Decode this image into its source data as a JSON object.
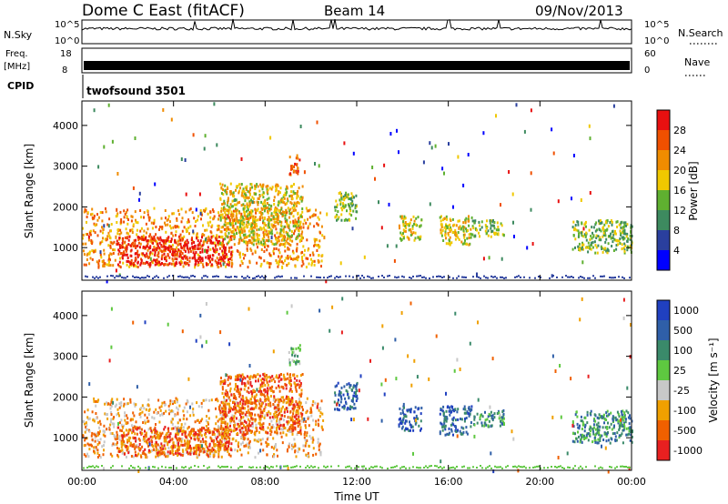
{
  "header": {
    "title": "Dome C East (fitACF)",
    "beam": "Beam 14",
    "date": "09/Nov/2013"
  },
  "top_panels": {
    "nsky_label": "N.Sky",
    "nsky_ticks": [
      "10^5",
      "10^0"
    ],
    "nsearch_label": "N.Search",
    "nsearch_ticks": [
      "10^5",
      "10^0"
    ],
    "freq_label": "Freq.",
    "freq_unit": "[MHz]",
    "freq_ticks": [
      "18",
      "8"
    ],
    "nave_label": "Nave",
    "nave_ticks": [
      "60",
      "0"
    ],
    "cpid_label": "CPID",
    "cpid_value": "twofsound 3501"
  },
  "colors": {
    "power": [
      "#0000ff",
      "#2a3f9e",
      "#3d8a5f",
      "#5fb030",
      "#f0c800",
      "#f08c00",
      "#f05000",
      "#e81010"
    ],
    "velocity": [
      "#e82020",
      "#f06000",
      "#f0a000",
      "#c8c8c8",
      "#5ec840",
      "#3a8a6a",
      "#2f5fa8",
      "#2040c0"
    ]
  },
  "chart_data": [
    {
      "type": "heatmap",
      "name": "power",
      "ylabel": "Slant Range [km]",
      "yticks": [
        1000,
        2000,
        3000,
        4000
      ],
      "ylim": [
        200,
        4600
      ],
      "xlim": [
        0,
        24
      ],
      "xticks": [
        "00:00",
        "04:00",
        "08:00",
        "12:00",
        "16:00",
        "20:00",
        "00:00"
      ],
      "colorbar_label": "Power [dB]",
      "colorbar_ticks": [
        "4",
        "8",
        "12",
        "16",
        "20",
        "24",
        "28"
      ],
      "regions": [
        {
          "t0": 0.0,
          "t1": 10.5,
          "r0": 550,
          "r1": 2000,
          "level": 5
        },
        {
          "t0": 1.5,
          "t1": 6.5,
          "r0": 600,
          "r1": 1300,
          "level": 7
        },
        {
          "t0": 6.0,
          "t1": 9.6,
          "r0": 1100,
          "r1": 2600,
          "level": 4
        },
        {
          "t0": 9.0,
          "t1": 9.5,
          "r0": 2800,
          "r1": 3300,
          "level": 6
        },
        {
          "t0": 11.0,
          "t1": 12.0,
          "r0": 1700,
          "r1": 2400,
          "level": 3
        },
        {
          "t0": 13.8,
          "t1": 14.8,
          "r0": 1200,
          "r1": 1800,
          "level": 4
        },
        {
          "t0": 15.6,
          "t1": 17.0,
          "r0": 1100,
          "r1": 1800,
          "level": 4
        },
        {
          "t0": 17.0,
          "t1": 18.4,
          "r0": 1300,
          "r1": 1700,
          "level": 3
        },
        {
          "t0": 21.4,
          "t1": 24.0,
          "r0": 900,
          "r1": 1700,
          "level": 3
        }
      ]
    },
    {
      "type": "heatmap",
      "name": "velocity",
      "ylabel": "Slant Range [km]",
      "yticks": [
        1000,
        2000,
        3000,
        4000
      ],
      "ylim": [
        200,
        4600
      ],
      "xlim": [
        0,
        24
      ],
      "xticks": [
        "00:00",
        "04:00",
        "08:00",
        "12:00",
        "16:00",
        "20:00",
        "00:00"
      ],
      "xlabel": "Time UT",
      "colorbar_label": "Velocity [m s⁻¹]",
      "colorbar_ticks": [
        "1000",
        "500",
        "100",
        "25",
        "-25",
        "-100",
        "-500",
        "-1000"
      ],
      "regions": [
        {
          "t0": 0.0,
          "t1": 10.5,
          "r0": 550,
          "r1": 2000,
          "level": 2
        },
        {
          "t0": 1.5,
          "t1": 6.5,
          "r0": 600,
          "r1": 1300,
          "level": 1
        },
        {
          "t0": 6.0,
          "t1": 9.6,
          "r0": 1100,
          "r1": 2600,
          "level": 1
        },
        {
          "t0": 9.0,
          "t1": 9.5,
          "r0": 2800,
          "r1": 3300,
          "level": 4
        },
        {
          "t0": 11.0,
          "t1": 12.0,
          "r0": 1700,
          "r1": 2400,
          "level": 6
        },
        {
          "t0": 13.8,
          "t1": 14.8,
          "r0": 1200,
          "r1": 1800,
          "level": 6
        },
        {
          "t0": 15.6,
          "t1": 17.0,
          "r0": 1100,
          "r1": 1800,
          "level": 6
        },
        {
          "t0": 17.0,
          "t1": 18.4,
          "r0": 1300,
          "r1": 1700,
          "level": 5
        },
        {
          "t0": 21.4,
          "t1": 24.0,
          "r0": 900,
          "r1": 1700,
          "level": 5
        }
      ]
    }
  ]
}
